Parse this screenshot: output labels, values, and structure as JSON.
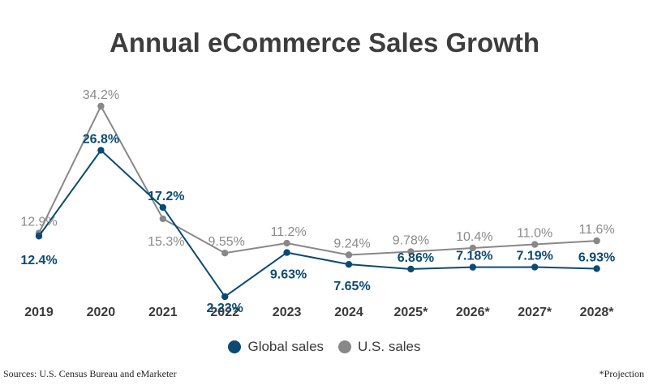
{
  "chart_data": {
    "type": "line",
    "title": "Annual eCommerce Sales Growth",
    "categories": [
      "2019",
      "2020",
      "2021",
      "2022",
      "2023",
      "2024",
      "2025*",
      "2026*",
      "2027*",
      "2028*"
    ],
    "series": [
      {
        "name": "Global sales",
        "color": "#0b4a72",
        "values": [
          12.4,
          26.8,
          17.2,
          2.23,
          9.63,
          7.65,
          6.86,
          7.18,
          7.19,
          6.93
        ],
        "labels": [
          "12.4%",
          "26.8%",
          "17.2%",
          "2.23%",
          "9.63%",
          "7.65%",
          "6.86%",
          "7.18%",
          "7.19%",
          "6.93%"
        ]
      },
      {
        "name": "U.S. sales",
        "color": "#888888",
        "values": [
          12.9,
          34.2,
          15.3,
          9.55,
          11.2,
          9.24,
          9.78,
          10.4,
          11.0,
          11.6
        ],
        "labels": [
          "12.9%",
          "34.2%",
          "15.3%",
          "9.55%",
          "11.2%",
          "9.24%",
          "9.78%",
          "10.4%",
          "11.0%",
          "11.6%"
        ]
      }
    ],
    "xlabel": "",
    "ylabel": "",
    "ylim": [
      0,
      36
    ],
    "grid": false,
    "legend": "bottom"
  },
  "footer": {
    "source": "Sources: U.S. Census Bureau and eMarketer",
    "note": "*Projection"
  }
}
